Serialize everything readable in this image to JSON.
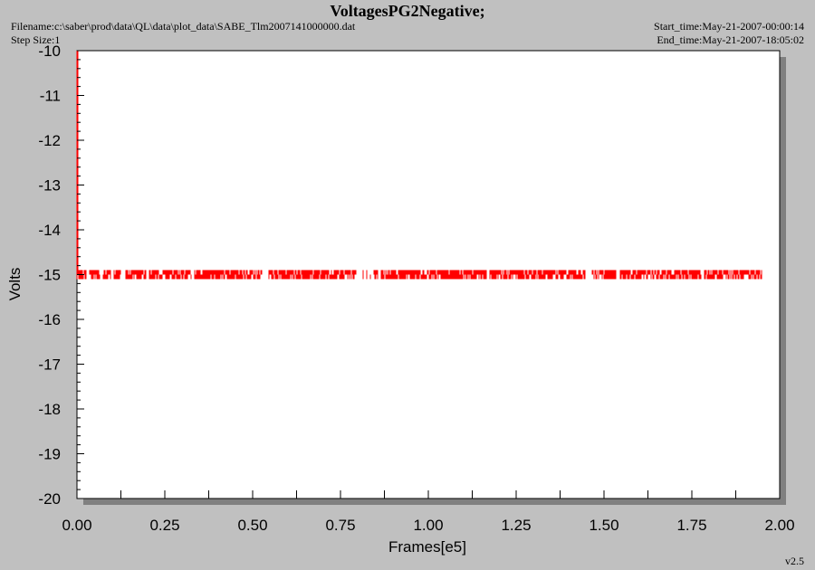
{
  "header": {
    "title": "VoltagesPG2Negative;",
    "filename": "Filename:c:\\saber\\prod\\data\\QL\\data\\plot_data\\SABE_Tlm2007141000000.dat",
    "step_size": "Step Size:1",
    "start_time": "Start_time:May-21-2007-00:00:14",
    "end_time": "End_time:May-21-2007-18:05:02"
  },
  "version": "v2.5",
  "chart_data": {
    "type": "line",
    "title": "VoltagesPG2Negative;",
    "xlabel": "Frames[e5]",
    "ylabel": "Volts",
    "xlim": [
      0.0,
      2.0
    ],
    "ylim": [
      -20,
      -10
    ],
    "x_ticks": [
      "0.00",
      "0.25",
      "0.50",
      "0.75",
      "1.00",
      "1.25",
      "1.50",
      "1.75",
      "2.00"
    ],
    "y_ticks": [
      "-10",
      "-11",
      "-12",
      "-13",
      "-14",
      "-15",
      "-16",
      "-17",
      "-18",
      "-19",
      "-20"
    ],
    "grid": false,
    "series": [
      {
        "color": "#ff0000",
        "x_range": [
          0.0,
          1.95
        ],
        "y_values": [
          -14.9,
          -15.1
        ],
        "startup_transient": {
          "x": 0.0,
          "y_range": [
            -10,
            -15
          ]
        },
        "gaps": [
          0.03,
          0.07,
          0.1,
          0.13,
          0.135,
          0.2,
          0.33,
          0.53,
          0.54,
          0.8,
          0.81,
          0.82,
          0.83,
          0.84,
          0.86,
          1.17,
          1.45,
          1.46,
          1.54,
          1.78
        ]
      }
    ]
  }
}
